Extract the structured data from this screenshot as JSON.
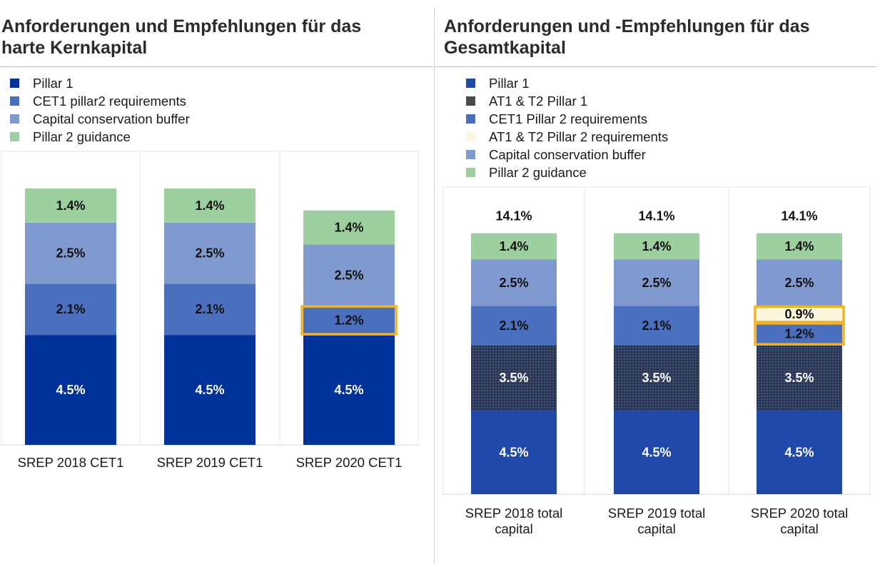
{
  "colors": {
    "pillar1_left": "#003299",
    "pillar1_right": "#1f48a8",
    "at1t2_pillar1": "#4a4a4a",
    "cet1_p2r": "#4a6fbf",
    "at1t2_p2r": "#fdf6df",
    "ccb": "#8099cf",
    "p2g": "#9dcf9f",
    "highlight": "#f5b324"
  },
  "chart_data": [
    {
      "type": "bar",
      "stacked": true,
      "title": "Anforderungen und Empfehlungen für das harte Kernkapital",
      "title_lines": [
        "Anforderungen und Empfehlungen für das",
        "harte Kernkapital"
      ],
      "categories": [
        "SREP 2018 CET1",
        "SREP 2019 CET1",
        "SREP 2020 CET1"
      ],
      "series": [
        {
          "name": "Pillar 1",
          "values": [
            4.5,
            4.5,
            4.5
          ],
          "labels": [
            "4.5%",
            "4.5%",
            "4.5%"
          ]
        },
        {
          "name": "CET1 pillar2 requirements",
          "values": [
            2.1,
            2.1,
            1.2
          ],
          "labels": [
            "2.1%",
            "2.1%",
            "1.2%"
          ]
        },
        {
          "name": "Capital conservation buffer",
          "values": [
            2.5,
            2.5,
            2.5
          ],
          "labels": [
            "2.5%",
            "2.5%",
            "2.5%"
          ]
        },
        {
          "name": "Pillar 2 guidance",
          "values": [
            1.4,
            1.4,
            1.4
          ],
          "labels": [
            "1.4%",
            "1.4%",
            "1.4%"
          ]
        }
      ],
      "totals": [],
      "highlight": [
        {
          "category": 2,
          "series": [
            1
          ]
        }
      ],
      "legend_position": "top-left",
      "grid": false
    },
    {
      "type": "bar",
      "stacked": true,
      "title": "Anforderungen und -Empfehlungen für das Gesamtkapital",
      "title_lines": [
        "Anforderungen und -Empfehlungen für das",
        "Gesamtkapital"
      ],
      "categories": [
        "SREP 2018 total capital",
        "SREP 2019 total capital",
        "SREP 2020 total capital"
      ],
      "category_lines": [
        [
          "SREP 2018 total",
          "capital"
        ],
        [
          "SREP 2019 total",
          "capital"
        ],
        [
          "SREP 2020 total",
          "capital"
        ]
      ],
      "series": [
        {
          "name": "Pillar 1",
          "values": [
            4.5,
            4.5,
            4.5
          ],
          "labels": [
            "4.5%",
            "4.5%",
            "4.5%"
          ]
        },
        {
          "name": "AT1 & T2 Pillar 1",
          "values": [
            3.5,
            3.5,
            3.5
          ],
          "labels": [
            "3.5%",
            "3.5%",
            "3.5%"
          ]
        },
        {
          "name": "CET1 Pillar 2 requirements",
          "values": [
            2.1,
            2.1,
            1.2
          ],
          "labels": [
            "2.1%",
            "2.1%",
            "1.2%"
          ]
        },
        {
          "name": "AT1 & T2 Pillar 2 requirements",
          "values": [
            0,
            0,
            0.9
          ],
          "labels": [
            "",
            "",
            "0.9%"
          ]
        },
        {
          "name": "Capital conservation buffer",
          "values": [
            2.5,
            2.5,
            2.5
          ],
          "labels": [
            "2.5%",
            "2.5%",
            "2.5%"
          ]
        },
        {
          "name": "Pillar 2 guidance",
          "values": [
            1.4,
            1.4,
            1.4
          ],
          "labels": [
            "1.4%",
            "1.4%",
            "1.4%"
          ]
        }
      ],
      "totals": [
        "14.1%",
        "14.1%",
        "14.1%"
      ],
      "highlight": [
        {
          "category": 2,
          "series": [
            3,
            2
          ]
        }
      ],
      "legend_position": "top-left",
      "grid": false
    }
  ]
}
